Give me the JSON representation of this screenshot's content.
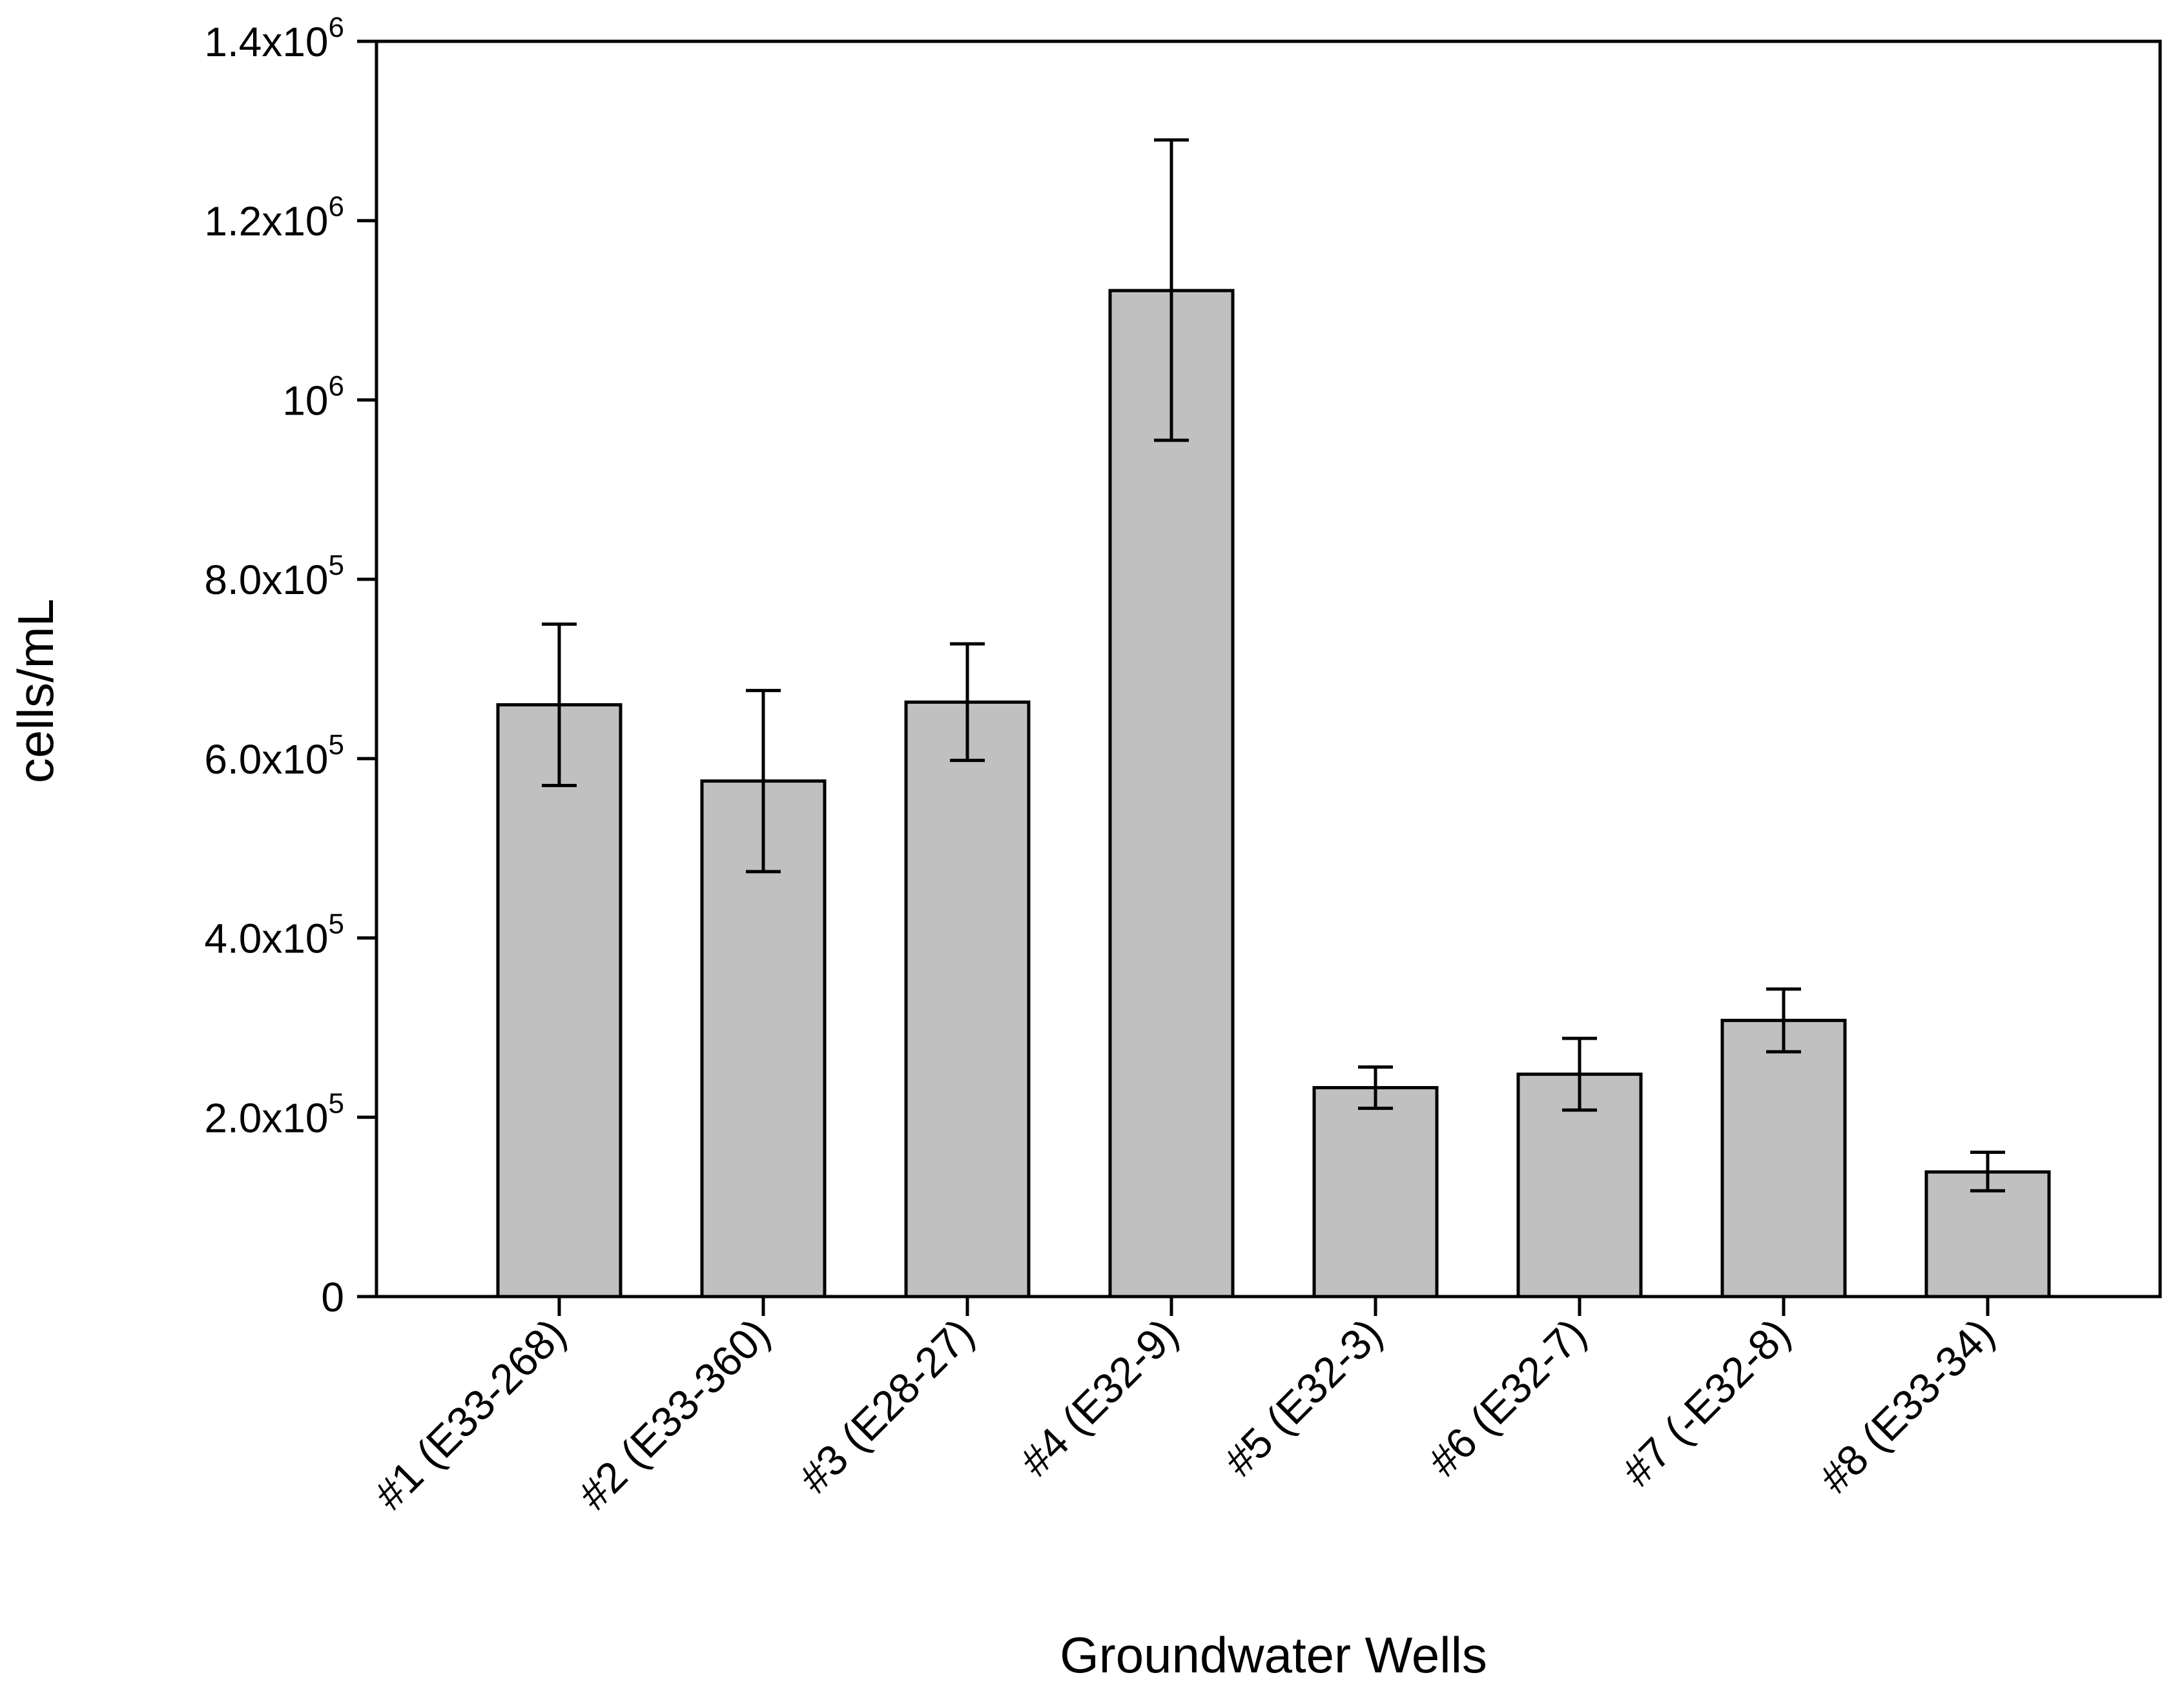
{
  "chart_data": {
    "type": "bar",
    "title": "",
    "xlabel": "Groundwater Wells",
    "ylabel": "cells/mL",
    "categories": [
      "#1 (E33-268)",
      "#2 (E33-360)",
      "#3 (E28-27)",
      "#4 (E32-9)",
      "#5 (E32-3)",
      "#6 (E32-7)",
      "#7 (-E32-8)",
      "#8 (E33-34)"
    ],
    "values": [
      660000,
      575000,
      663000,
      1122000,
      233000,
      248000,
      308000,
      139000
    ],
    "error_upper": [
      750000,
      676000,
      728000,
      1290000,
      256000,
      288000,
      343000,
      161000
    ],
    "error_lower": [
      570000,
      474000,
      598000,
      955000,
      210000,
      208000,
      273000,
      118000
    ],
    "ylim": [
      0,
      1400000
    ],
    "yticks": [
      {
        "value": 0,
        "base": "0",
        "exp": ""
      },
      {
        "value": 200000,
        "base": "2.0x10",
        "exp": "5"
      },
      {
        "value": 400000,
        "base": "4.0x10",
        "exp": "5"
      },
      {
        "value": 600000,
        "base": "6.0x10",
        "exp": "5"
      },
      {
        "value": 800000,
        "base": "8.0x10",
        "exp": "5"
      },
      {
        "value": 1000000,
        "base": "10",
        "exp": "6"
      },
      {
        "value": 1200000,
        "base": "1.2x10",
        "exp": "6"
      },
      {
        "value": 1400000,
        "base": "1.4x10",
        "exp": "6"
      }
    ],
    "bar_color": "#c0c0c0",
    "grid": false,
    "legend": "none"
  }
}
